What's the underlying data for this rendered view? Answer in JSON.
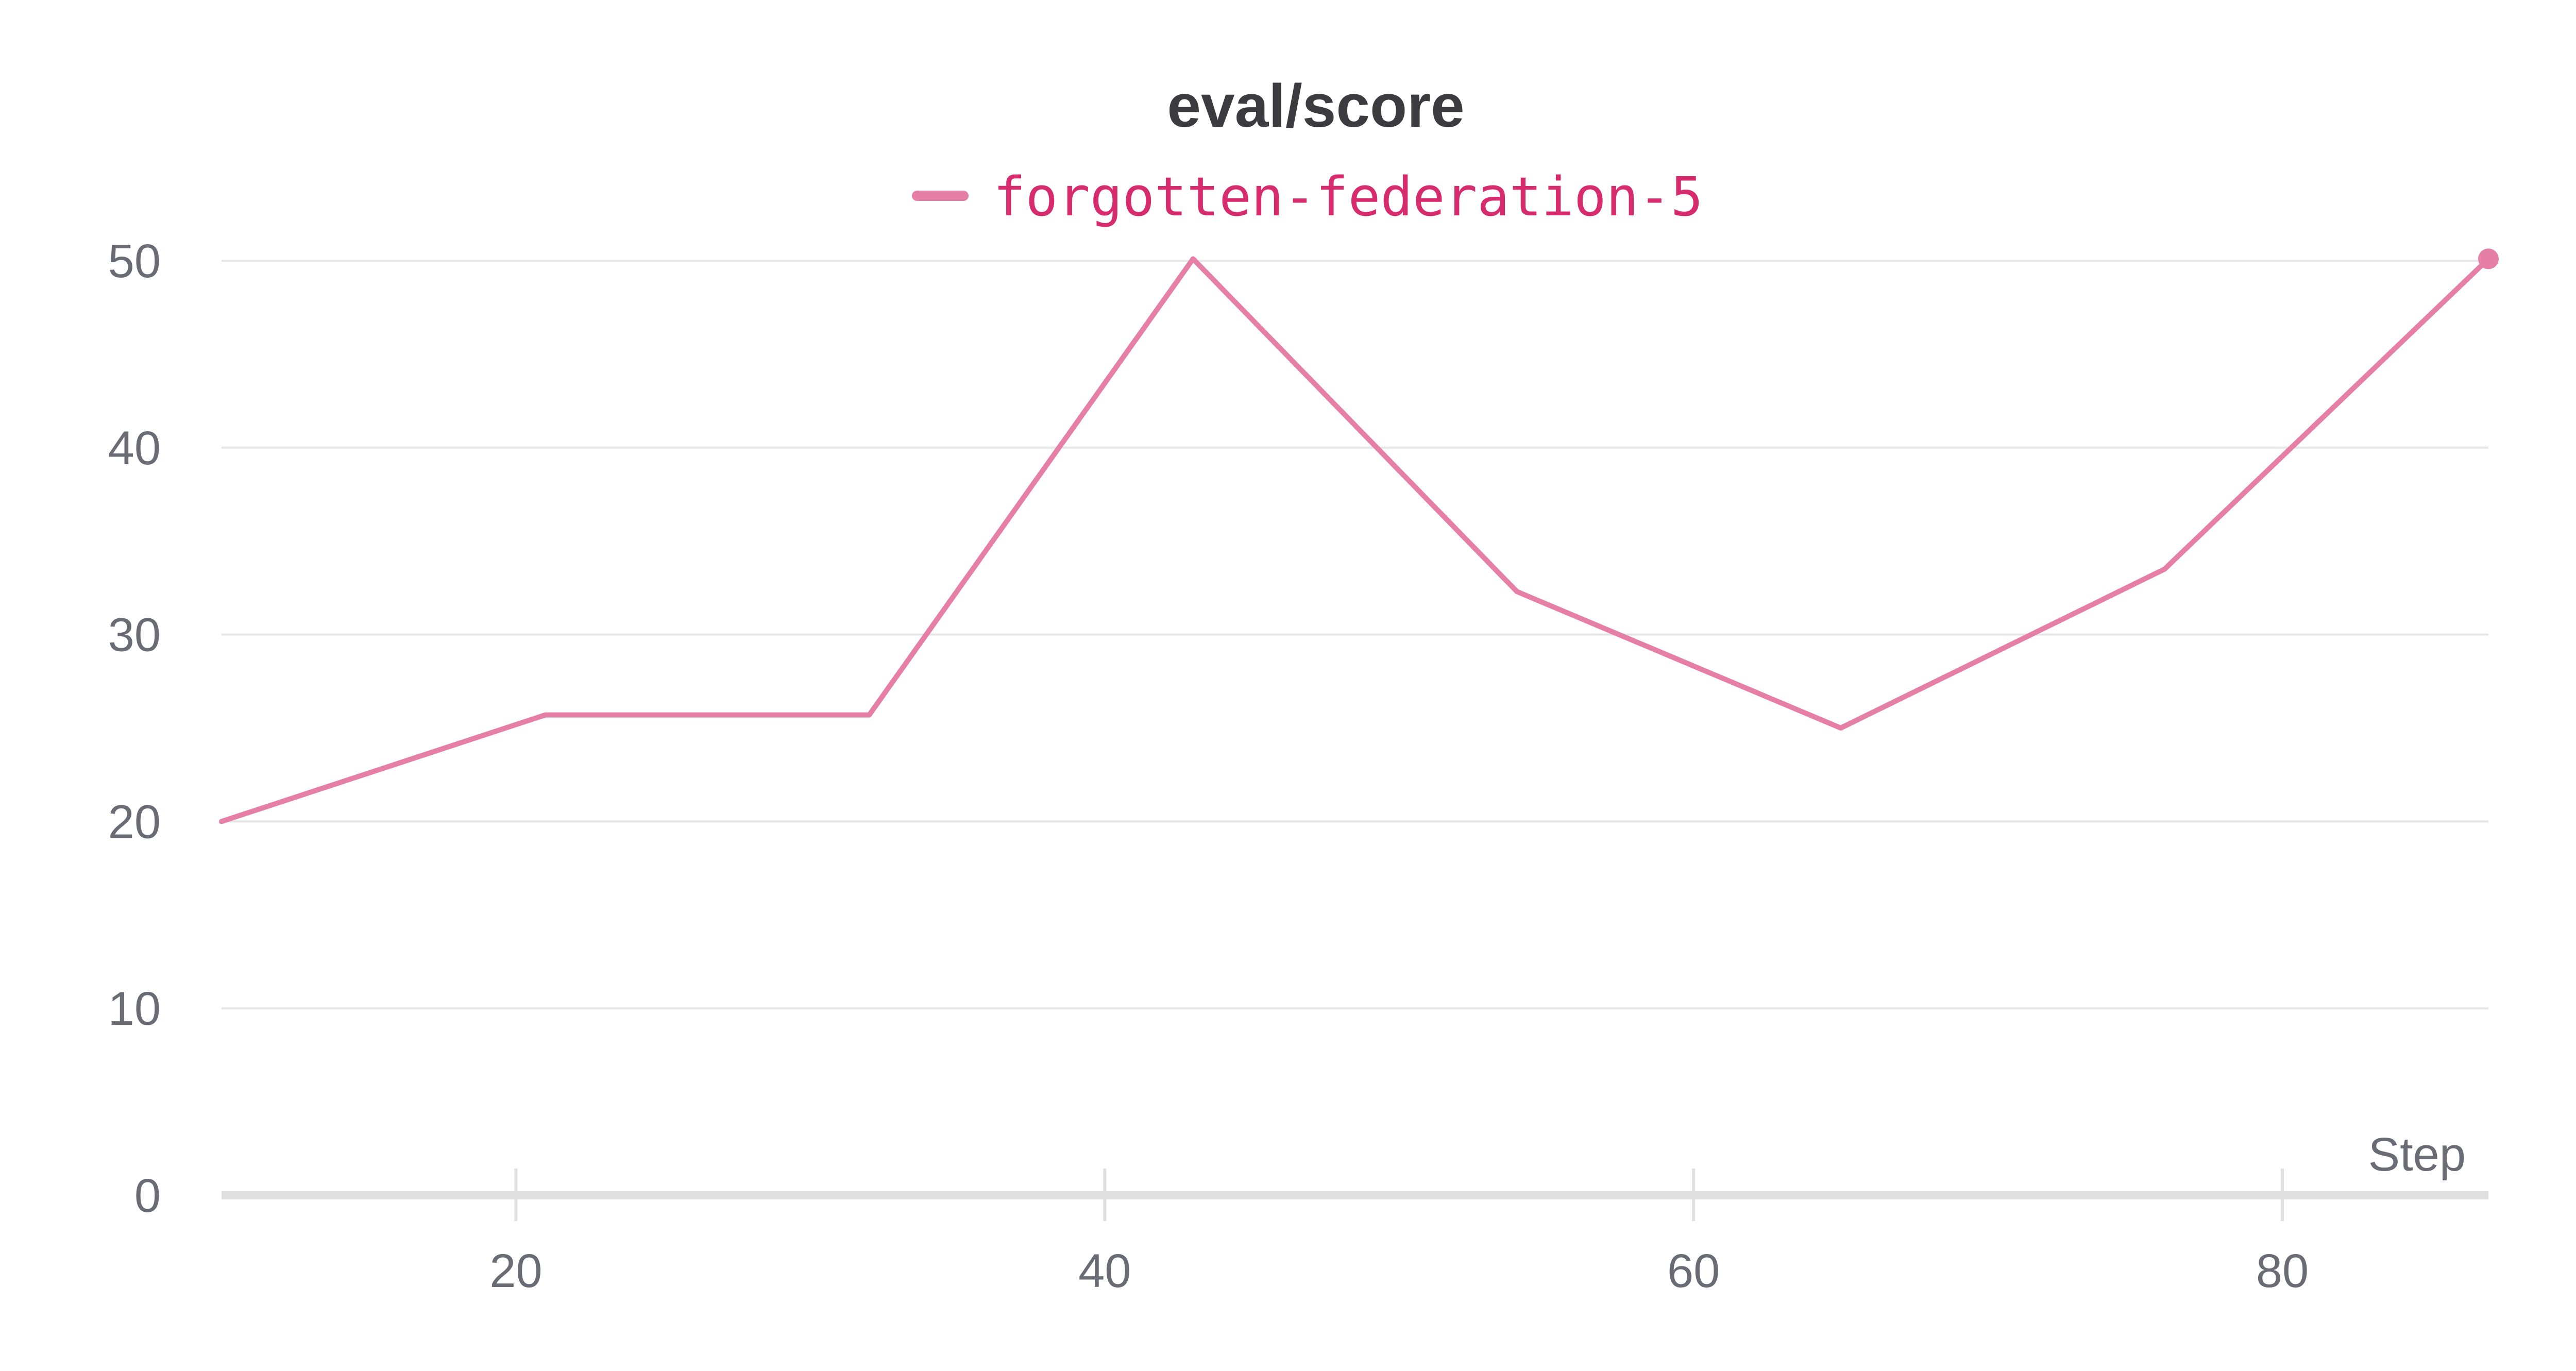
{
  "chart_data": {
    "type": "line",
    "title": "eval/score",
    "xlabel": "Step",
    "ylabel": "",
    "xlim": [
      10,
      87
    ],
    "ylim": [
      0,
      50
    ],
    "x_ticks": [
      20,
      40,
      60,
      80
    ],
    "y_ticks": [
      0,
      10,
      20,
      30,
      40,
      50
    ],
    "grid": true,
    "legend_position": "top-center",
    "series": [
      {
        "name": "forgotten-federation-5",
        "color": "#e57fa6",
        "label_color": "#d62b6d",
        "x": [
          10,
          21,
          32,
          43,
          54,
          65,
          76,
          87
        ],
        "y": [
          20,
          25.7,
          25.7,
          50.1,
          32.3,
          25,
          33.5,
          50.1
        ]
      }
    ]
  },
  "colors": {
    "title": "#3b3b40",
    "tick_label": "#6b6b76",
    "grid": "#e6e6e6",
    "axis": "#e0e0e0"
  }
}
